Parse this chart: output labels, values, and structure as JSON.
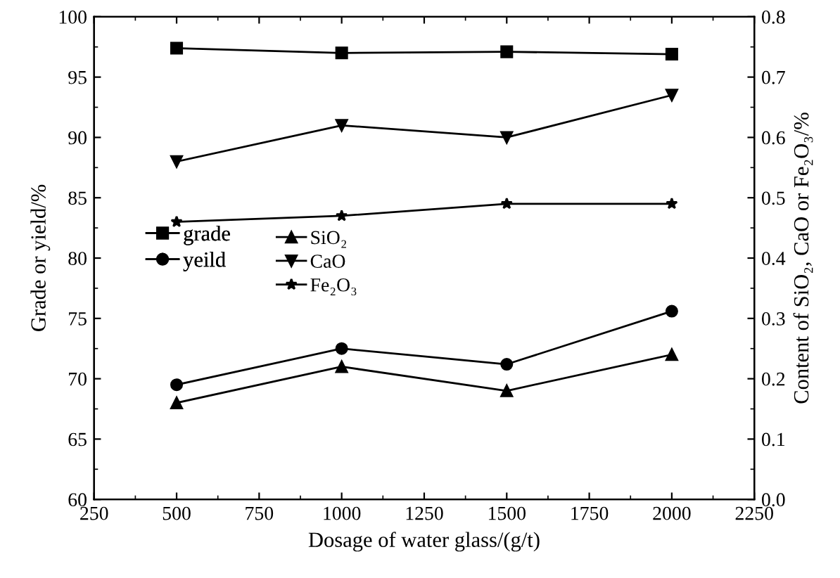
{
  "chart_data": {
    "type": "line",
    "xlabel": "Dosage of water glass/(g/t)",
    "ylabel": "Grade or yield/%",
    "y2label": "Content of SiO₂, CaO or Fe₂O₃/%",
    "x": [
      500,
      1000,
      1500,
      2000
    ],
    "series": [
      {
        "name": "grade",
        "color": "#000000",
        "marker": "square",
        "values": [
          97.4,
          97.0,
          97.1,
          96.9
        ]
      },
      {
        "name": "yeild",
        "color": "#000000",
        "marker": "circle",
        "values": [
          69.5,
          72.5,
          71.2,
          75.6
        ]
      },
      {
        "name": "SiO₂",
        "color": "#000000",
        "marker": "triangle",
        "axis": "y2",
        "values": [
          0.16,
          0.22,
          0.18,
          0.24
        ]
      },
      {
        "name": "CaO",
        "color": "#000000",
        "marker": "triangle_down",
        "axis": "y2",
        "values": [
          0.56,
          0.62,
          0.6,
          0.67
        ]
      },
      {
        "name": "Fe₂O₃",
        "color": "#000000",
        "marker": "star",
        "axis": "y2",
        "values": [
          0.46,
          0.47,
          0.49,
          0.49
        ]
      }
    ],
    "xlim": [
      250,
      2250
    ],
    "xticks": [
      250,
      500,
      750,
      1000,
      1250,
      1500,
      1750,
      2000,
      2250
    ],
    "ylim": [
      60,
      100
    ],
    "yticks": [
      60,
      65,
      70,
      75,
      80,
      85,
      90,
      95,
      100
    ],
    "y2lim": [
      0,
      0.8
    ],
    "y2ticks": [
      {
        "value": 0,
        "label": "0.0"
      },
      0.1,
      0.2,
      0.3,
      0.4,
      0.5,
      0.6,
      0.7,
      0.8
    ],
    "grid": false,
    "legend": "center left",
    "line_style": "solid"
  }
}
